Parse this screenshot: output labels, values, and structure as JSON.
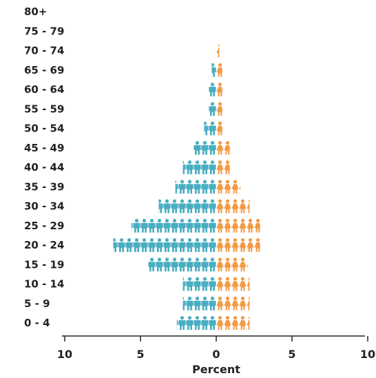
{
  "chart_data": {
    "type": "bar",
    "subtype": "population-pyramid-pictograph",
    "categories": [
      "0 - 4",
      "5 - 9",
      "10 - 14",
      "15 - 19",
      "20 - 24",
      "25 - 29",
      "30 - 34",
      "35 - 39",
      "40 - 44",
      "45 - 49",
      "50 - 54",
      "55 - 59",
      "60 - 64",
      "65 - 69",
      "70 - 74",
      "75 - 79",
      "80+"
    ],
    "series": [
      {
        "side": "left",
        "color": "#4aaec2",
        "icon": "male-person-icon",
        "values": [
          2.6,
          2.2,
          2.2,
          4.5,
          6.8,
          5.6,
          3.8,
          2.7,
          2.2,
          1.5,
          0.8,
          0.5,
          0.5,
          0.3,
          0.0,
          0.0,
          0.0
        ]
      },
      {
        "side": "right",
        "color": "#f39a44",
        "icon": "female-person-icon",
        "values": [
          2.2,
          2.2,
          2.2,
          2.1,
          2.9,
          2.9,
          2.2,
          1.6,
          0.9,
          0.9,
          0.4,
          0.4,
          0.4,
          0.4,
          0.2,
          0.0,
          0.0
        ]
      }
    ],
    "icon_unit": 0.5,
    "xlabel": "Percent",
    "xticks": [
      "10",
      "5",
      "0",
      "5",
      "10"
    ],
    "xlim": [
      -10,
      10
    ],
    "grid": false,
    "legend": "none"
  }
}
